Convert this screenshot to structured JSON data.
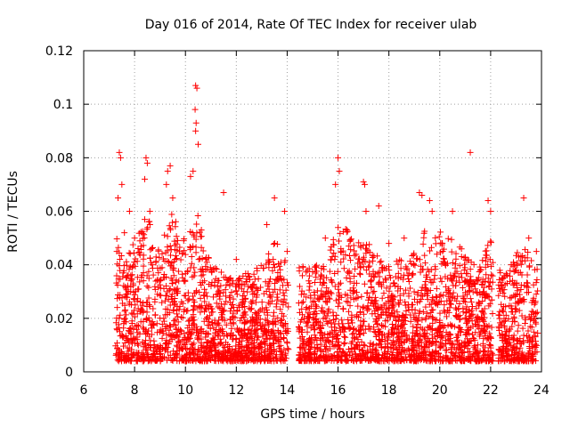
{
  "chart_data": {
    "type": "scatter",
    "title": "Day 016 of 2014, Rate Of TEC Index for receiver ulab",
    "xlabel": "GPS time / hours",
    "ylabel": "ROTI / TECUs",
    "xlim": [
      6,
      24
    ],
    "ylim": [
      0,
      0.12
    ],
    "xticks": [
      6,
      8,
      10,
      12,
      14,
      16,
      18,
      20,
      22,
      24
    ],
    "yticks": [
      0,
      0.02,
      0.04,
      0.06,
      0.08,
      0.1,
      0.12
    ],
    "ytick_labels": [
      "0",
      "0.02",
      "0.04",
      "0.06",
      "0.08",
      "0.1",
      "0.12"
    ],
    "grid": true,
    "marker": "+",
    "color": "#ff0000",
    "data_gaps_hours": [
      [
        14.05,
        14.45
      ],
      [
        22.1,
        22.3
      ]
    ],
    "series": [
      {
        "name": "ROTI",
        "points": [
          [
            7.35,
            0.065
          ],
          [
            7.4,
            0.082
          ],
          [
            7.45,
            0.08
          ],
          [
            7.5,
            0.07
          ],
          [
            7.3,
            0.045
          ],
          [
            7.6,
            0.052
          ],
          [
            7.8,
            0.06
          ],
          [
            8.0,
            0.05
          ],
          [
            8.45,
            0.08
          ],
          [
            8.5,
            0.078
          ],
          [
            8.4,
            0.072
          ],
          [
            8.6,
            0.06
          ],
          [
            9.3,
            0.075
          ],
          [
            9.4,
            0.077
          ],
          [
            9.25,
            0.07
          ],
          [
            9.5,
            0.065
          ],
          [
            10.2,
            0.073
          ],
          [
            10.3,
            0.075
          ],
          [
            10.4,
            0.107
          ],
          [
            10.45,
            0.106
          ],
          [
            10.38,
            0.098
          ],
          [
            10.42,
            0.093
          ],
          [
            10.4,
            0.09
          ],
          [
            10.5,
            0.085
          ],
          [
            11.5,
            0.067
          ],
          [
            12.0,
            0.042
          ],
          [
            13.2,
            0.055
          ],
          [
            13.5,
            0.065
          ],
          [
            13.9,
            0.06
          ],
          [
            14.0,
            0.045
          ],
          [
            15.5,
            0.05
          ],
          [
            15.9,
            0.07
          ],
          [
            16.0,
            0.08
          ],
          [
            16.05,
            0.075
          ],
          [
            17.0,
            0.071
          ],
          [
            17.05,
            0.07
          ],
          [
            17.1,
            0.06
          ],
          [
            17.6,
            0.062
          ],
          [
            18.0,
            0.048
          ],
          [
            18.6,
            0.05
          ],
          [
            19.2,
            0.067
          ],
          [
            19.3,
            0.066
          ],
          [
            19.6,
            0.064
          ],
          [
            19.7,
            0.06
          ],
          [
            20.5,
            0.06
          ],
          [
            21.2,
            0.082
          ],
          [
            21.9,
            0.064
          ],
          [
            22.0,
            0.06
          ],
          [
            23.3,
            0.065
          ],
          [
            23.5,
            0.05
          ],
          [
            23.8,
            0.045
          ]
        ],
        "background_density": {
          "description": "dense cloud of points across each observation interval",
          "intervals_hours": [
            [
              7.25,
              14.05
            ],
            [
              14.45,
              22.1
            ],
            [
              22.3,
              23.85
            ]
          ],
          "floor": 0.004,
          "typical_range": [
            0.005,
            0.035
          ],
          "upper_envelope": [
            [
              7.3,
              0.05
            ],
            [
              7.6,
              0.04
            ],
            [
              8.0,
              0.05
            ],
            [
              8.5,
              0.06
            ],
            [
              9.0,
              0.045
            ],
            [
              9.4,
              0.06
            ],
            [
              10.0,
              0.05
            ],
            [
              10.5,
              0.06
            ],
            [
              11.0,
              0.04
            ],
            [
              12.0,
              0.035
            ],
            [
              13.0,
              0.04
            ],
            [
              13.5,
              0.05
            ],
            [
              14.0,
              0.04
            ],
            [
              14.6,
              0.04
            ],
            [
              15.5,
              0.04
            ],
            [
              16.0,
              0.055
            ],
            [
              17.0,
              0.05
            ],
            [
              18.0,
              0.04
            ],
            [
              19.0,
              0.045
            ],
            [
              19.5,
              0.055
            ],
            [
              20.5,
              0.05
            ],
            [
              21.5,
              0.04
            ],
            [
              22.0,
              0.05
            ],
            [
              22.5,
              0.035
            ],
            [
              23.3,
              0.05
            ],
            [
              23.8,
              0.04
            ]
          ]
        }
      }
    ]
  }
}
